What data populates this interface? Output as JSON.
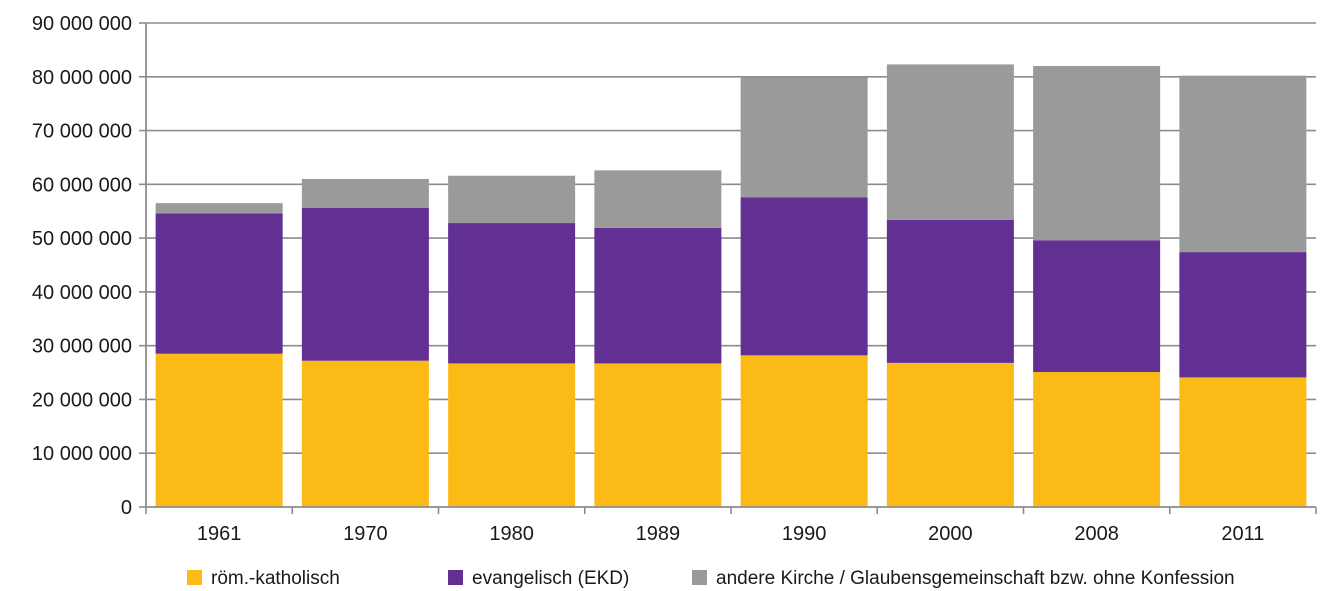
{
  "chart_data": {
    "type": "bar",
    "stacked": true,
    "categories": [
      "1961",
      "1970",
      "1980",
      "1989",
      "1990",
      "2000",
      "2008",
      "2011"
    ],
    "series": [
      {
        "name": "röm.-katholisch",
        "color": "#FBBA16",
        "values": [
          28500000,
          27200000,
          26700000,
          26700000,
          28200000,
          26800000,
          25100000,
          24100000
        ]
      },
      {
        "name": "evangelisch (EKD)",
        "color": "#622F92",
        "values": [
          26100000,
          28400000,
          26100000,
          25200000,
          29400000,
          26600000,
          24500000,
          23300000
        ]
      },
      {
        "name": "andere Kirche / Glaubensgemeinschaft bzw. ohne Konfession",
        "color": "#999B9B",
        "values": [
          1900000,
          5400000,
          8800000,
          10700000,
          22300000,
          28900000,
          32400000,
          32800000
        ]
      }
    ],
    "yticks": [
      "0",
      "10 000 000",
      "20 000 000",
      "30 000 000",
      "40 000 000",
      "50 000 000",
      "60 000 000",
      "70 000 000",
      "80 000 000",
      "90 000 000"
    ],
    "ylim": [
      0,
      90000000
    ],
    "grid": true,
    "legend": "bottom",
    "title": "",
    "xlabel": "",
    "ylabel": ""
  }
}
